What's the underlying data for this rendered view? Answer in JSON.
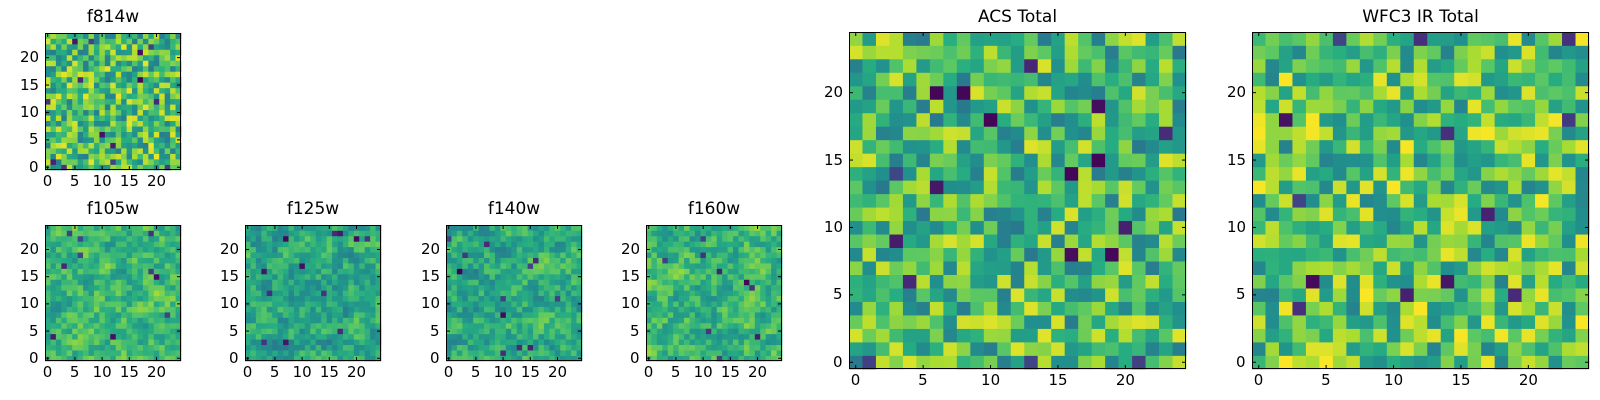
{
  "chart_data": [
    {
      "id": "f814w",
      "type": "heatmap",
      "title": "f814w",
      "rows": 25,
      "cols": 25,
      "colormap": "viridis",
      "vrange": [
        0,
        1
      ],
      "xlim": [
        -0.5,
        24.5
      ],
      "ylim": [
        -0.5,
        24.5
      ],
      "xticks": [
        "0",
        "5",
        "10",
        "15",
        "20"
      ],
      "yticks": [
        "0",
        "5",
        "10",
        "15",
        "20"
      ],
      "seed": 814,
      "bias": 0.08,
      "blocks": 1,
      "dark_spots": 14
    },
    {
      "id": "f105w",
      "type": "heatmap",
      "title": "f105w",
      "rows": 25,
      "cols": 25,
      "colormap": "viridis",
      "vrange": [
        0,
        1
      ],
      "xlim": [
        -0.5,
        24.5
      ],
      "ylim": [
        -0.5,
        24.5
      ],
      "xticks": [
        "0",
        "5",
        "10",
        "15",
        "20"
      ],
      "yticks": [
        "0",
        "5",
        "10",
        "15",
        "20"
      ],
      "seed": 105,
      "bias": 0.05,
      "blocks": 2,
      "dark_spots": 10
    },
    {
      "id": "f125w",
      "type": "heatmap",
      "title": "f125w",
      "rows": 25,
      "cols": 25,
      "colormap": "viridis",
      "vrange": [
        0,
        1
      ],
      "xlim": [
        -0.5,
        24.5
      ],
      "ylim": [
        -0.5,
        24.5
      ],
      "xticks": [
        "0",
        "5",
        "10",
        "15",
        "20"
      ],
      "yticks": [
        "0",
        "5",
        "10",
        "15",
        "20"
      ],
      "seed": 125,
      "bias": -0.02,
      "blocks": 2,
      "dark_spots": 12
    },
    {
      "id": "f140w",
      "type": "heatmap",
      "title": "f140w",
      "rows": 25,
      "cols": 25,
      "colormap": "viridis",
      "vrange": [
        0,
        1
      ],
      "xlim": [
        -0.5,
        24.5
      ],
      "ylim": [
        -0.5,
        24.5
      ],
      "xticks": [
        "0",
        "5",
        "10",
        "15",
        "20"
      ],
      "yticks": [
        "0",
        "5",
        "10",
        "15",
        "20"
      ],
      "seed": 140,
      "bias": 0.0,
      "blocks": 2,
      "dark_spots": 12
    },
    {
      "id": "f160w",
      "type": "heatmap",
      "title": "f160w",
      "rows": 25,
      "cols": 25,
      "colormap": "viridis",
      "vrange": [
        0,
        1
      ],
      "xlim": [
        -0.5,
        24.5
      ],
      "ylim": [
        -0.5,
        24.5
      ],
      "xticks": [
        "0",
        "5",
        "10",
        "15",
        "20"
      ],
      "yticks": [
        "0",
        "5",
        "10",
        "15",
        "20"
      ],
      "seed": 160,
      "bias": 0.04,
      "blocks": 2,
      "dark_spots": 9
    },
    {
      "id": "acs-total",
      "type": "heatmap",
      "title": "ACS Total",
      "rows": 25,
      "cols": 25,
      "colormap": "viridis",
      "vrange": [
        0,
        1
      ],
      "xlim": [
        -0.5,
        24.5
      ],
      "ylim": [
        -0.5,
        24.5
      ],
      "xticks": [
        "0",
        "5",
        "10",
        "15",
        "20"
      ],
      "yticks": [
        "0",
        "5",
        "10",
        "15",
        "20"
      ],
      "seed": 2001,
      "bias": 0.06,
      "blocks": 1,
      "dark_spots": 18
    },
    {
      "id": "wfc3-ir-total",
      "type": "heatmap",
      "title": "WFC3 IR Total",
      "rows": 25,
      "cols": 25,
      "colormap": "viridis",
      "vrange": [
        0,
        1
      ],
      "xlim": [
        -0.5,
        24.5
      ],
      "ylim": [
        -0.5,
        24.5
      ],
      "xticks": [
        "0",
        "5",
        "10",
        "15",
        "20"
      ],
      "yticks": [
        "0",
        "5",
        "10",
        "15",
        "20"
      ],
      "seed": 3003,
      "bias": 0.1,
      "blocks": 1,
      "dark_spots": 14
    }
  ]
}
